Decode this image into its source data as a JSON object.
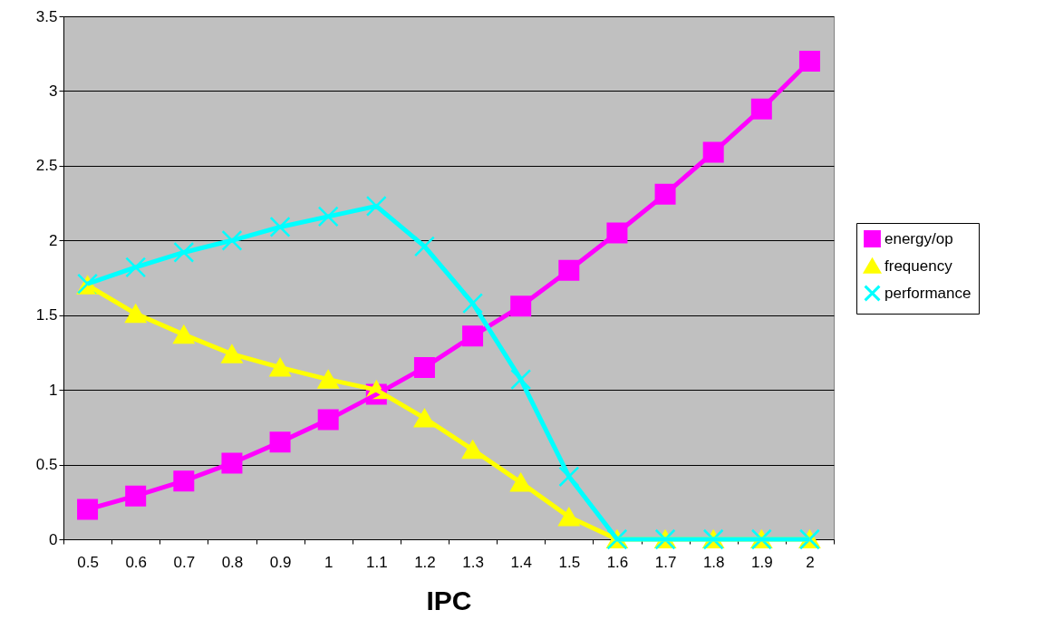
{
  "chart_data": {
    "type": "line",
    "xlabel": "IPC",
    "categories": [
      "0.5",
      "0.6",
      "0.7",
      "0.8",
      "0.9",
      "1",
      "1.1",
      "1.2",
      "1.3",
      "1.4",
      "1.5",
      "1.6",
      "1.7",
      "1.8",
      "1.9",
      "2"
    ],
    "series": [
      {
        "name": "energy/op",
        "color": "#ff00ff",
        "marker": "square",
        "values": [
          0.2,
          0.29,
          0.39,
          0.51,
          0.65,
          0.8,
          0.97,
          1.15,
          1.36,
          1.56,
          1.8,
          2.05,
          2.31,
          2.59,
          2.88,
          3.2
        ]
      },
      {
        "name": "frequency",
        "color": "#ffff00",
        "marker": "triangle",
        "values": [
          1.7,
          1.51,
          1.37,
          1.24,
          1.15,
          1.07,
          1.0,
          0.81,
          0.6,
          0.38,
          0.15,
          0,
          0,
          0,
          0,
          0
        ]
      },
      {
        "name": "performance",
        "color": "#00ffff",
        "marker": "cross",
        "values": [
          1.71,
          1.82,
          1.92,
          2.0,
          2.09,
          2.16,
          2.23,
          1.96,
          1.58,
          1.07,
          0.42,
          0,
          0,
          0,
          0,
          0
        ]
      }
    ],
    "ylim": [
      0,
      3.5
    ],
    "yticks": [
      0,
      0.5,
      1,
      1.5,
      2,
      2.5,
      3,
      3.5
    ],
    "grid": "y",
    "legend": "right",
    "line_style": "solid"
  }
}
